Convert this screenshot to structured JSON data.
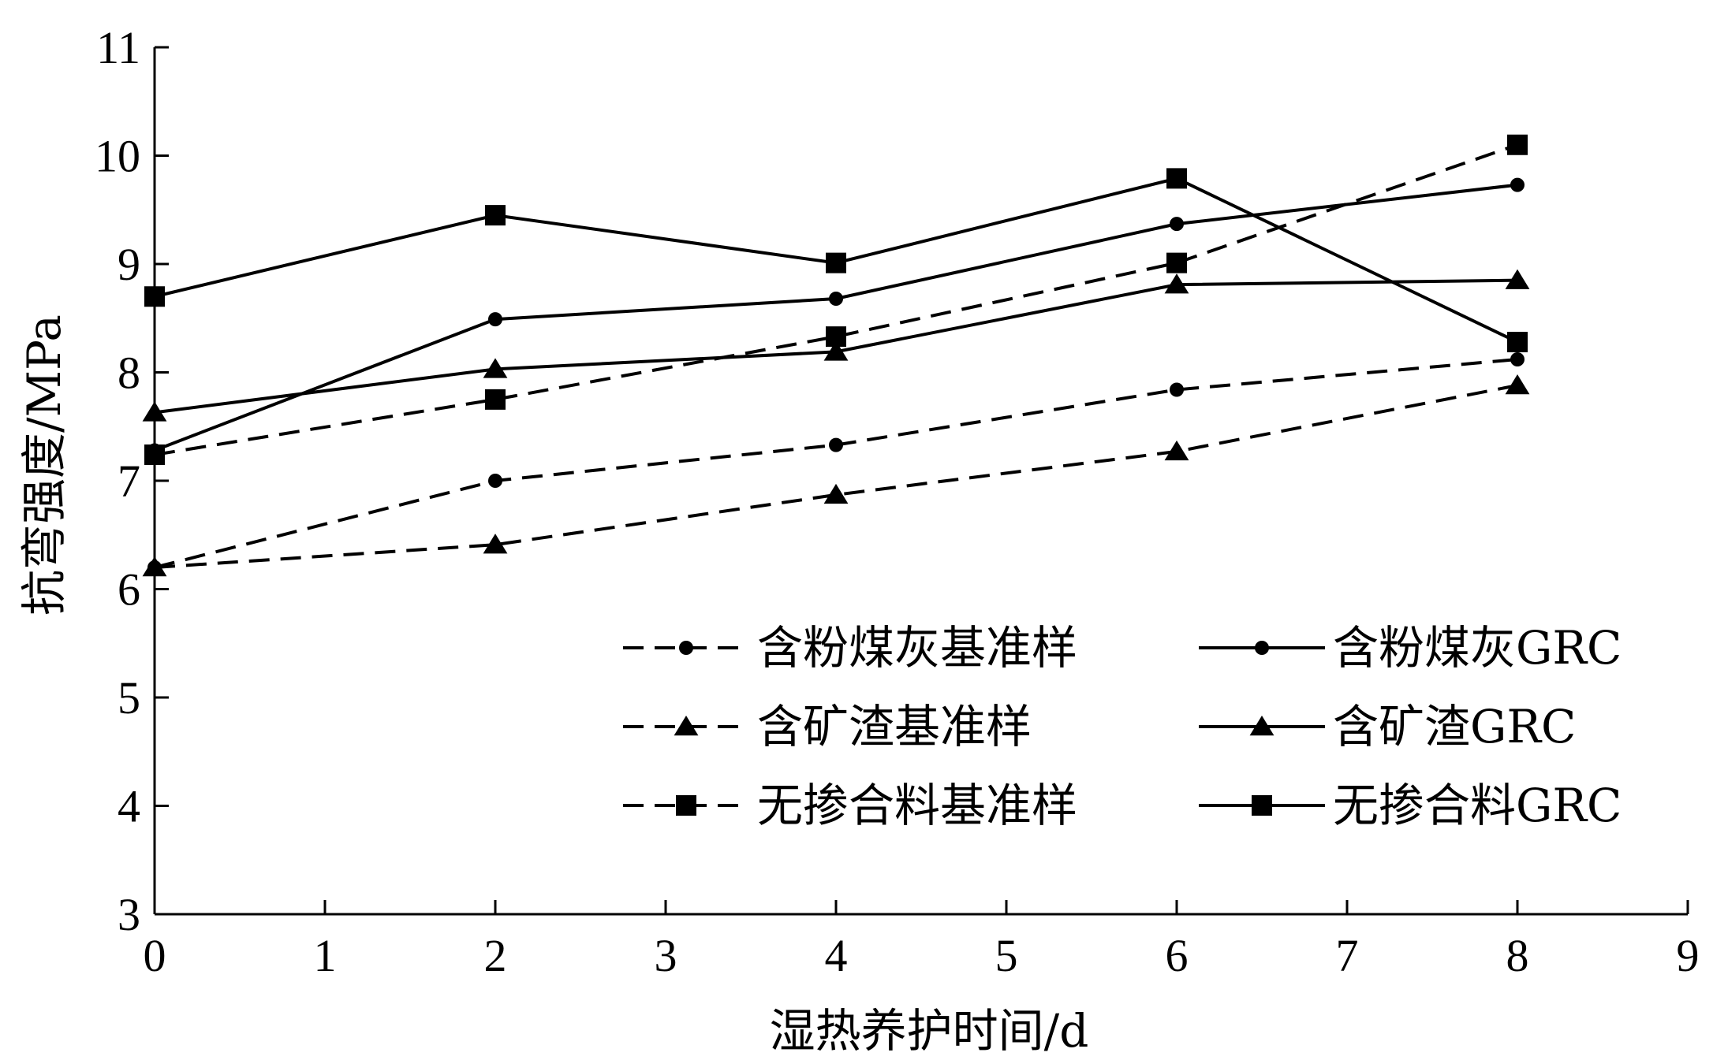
{
  "chart_data": {
    "type": "line",
    "xlabel": "湿热养护时间/d",
    "ylabel": "抗弯强度/MPa",
    "xlim": [
      0,
      9
    ],
    "ylim": [
      3,
      11
    ],
    "xticks": [
      0,
      1,
      2,
      3,
      4,
      5,
      6,
      7,
      8,
      9
    ],
    "yticks": [
      3,
      4,
      5,
      6,
      7,
      8,
      9,
      10,
      11
    ],
    "x": [
      0,
      2,
      4,
      6,
      8
    ],
    "grid": false,
    "legend_position": "bottom-right",
    "series": [
      {
        "name": "含粉煤灰基准样",
        "marker": "circle",
        "dash": true,
        "values": [
          6.2,
          7.0,
          7.33,
          7.84,
          8.12
        ]
      },
      {
        "name": "含粉煤灰GRC",
        "marker": "circle",
        "dash": false,
        "values": [
          7.28,
          8.49,
          8.68,
          9.37,
          9.73
        ]
      },
      {
        "name": "含矿渣基准样",
        "marker": "triangle",
        "dash": true,
        "values": [
          6.2,
          6.41,
          6.87,
          7.27,
          7.88
        ]
      },
      {
        "name": "含矿渣GRC",
        "marker": "triangle",
        "dash": false,
        "values": [
          7.63,
          8.03,
          8.19,
          8.81,
          8.85
        ]
      },
      {
        "name": "无掺合料基准样",
        "marker": "square",
        "dash": true,
        "values": [
          7.24,
          7.75,
          8.33,
          9.01,
          10.1
        ]
      },
      {
        "name": "无掺合料GRC",
        "marker": "square",
        "dash": false,
        "values": [
          8.7,
          9.45,
          9.01,
          9.79,
          8.28
        ]
      }
    ]
  }
}
